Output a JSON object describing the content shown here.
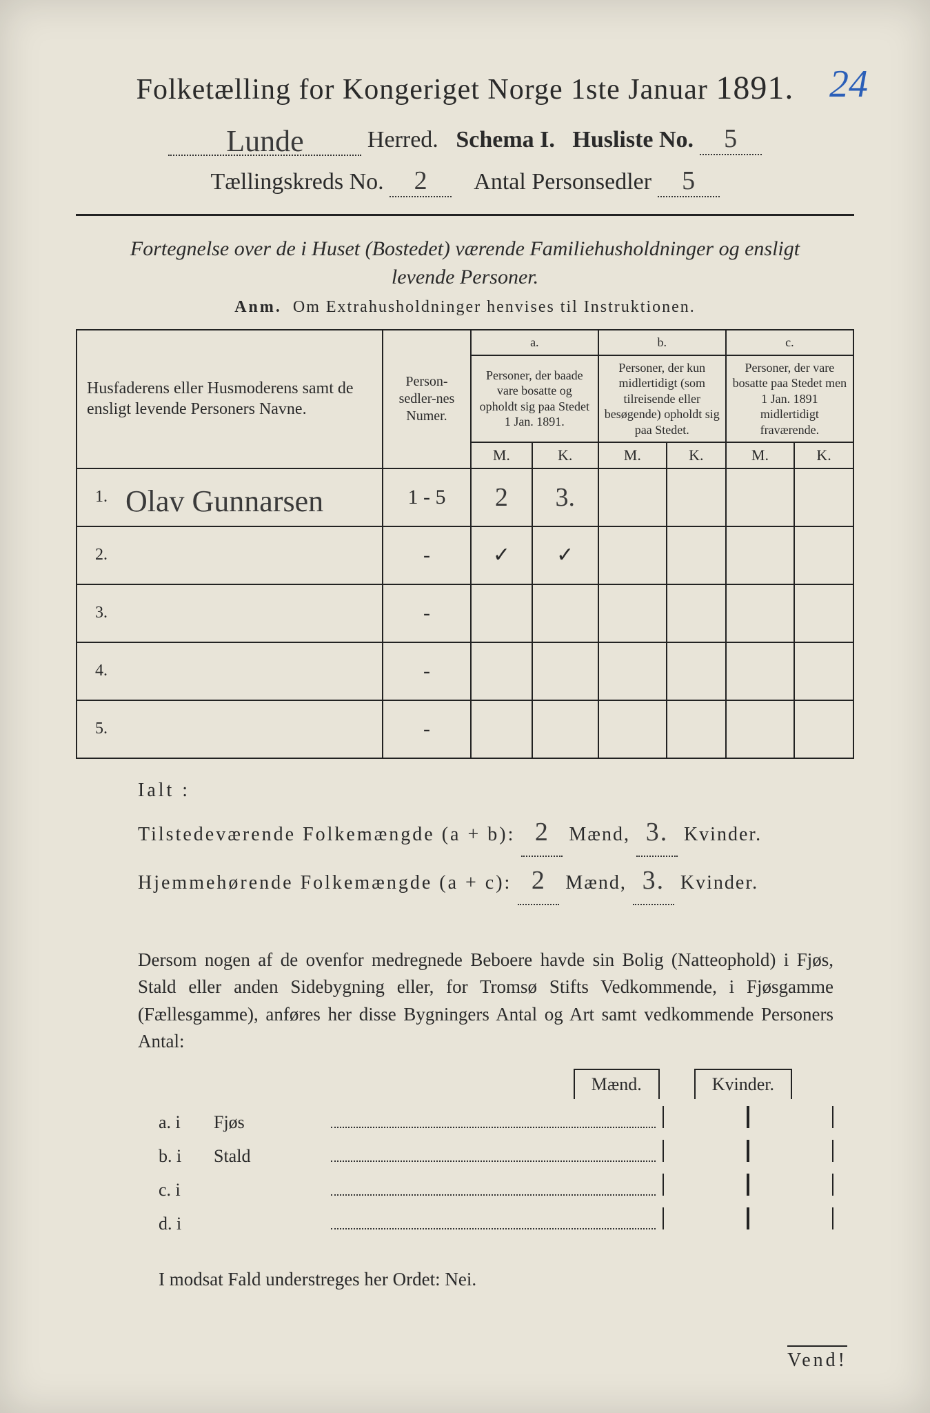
{
  "page_number_handwritten": "24",
  "title": {
    "main": "Folketælling for Kongeriget Norge 1ste Januar",
    "year": "1891."
  },
  "header": {
    "herred_value": "Lunde",
    "herred_label": "Herred.",
    "schema_label": "Schema I.",
    "husliste_label": "Husliste No.",
    "husliste_value": "5",
    "kreds_label": "Tællingskreds No.",
    "kreds_value": "2",
    "antal_label": "Antal Personsedler",
    "antal_value": "5"
  },
  "subtitle": "Fortegnelse over de i Huset (Bostedet) værende Familiehusholdninger og ensligt levende Personer.",
  "anm": {
    "label": "Anm.",
    "text": "Om Extrahusholdninger henvises til Instruktionen."
  },
  "table": {
    "col_name": "Husfaderens eller Husmoderens samt de ensligt levende Personers Navne.",
    "col_num": "Person-sedler-nes Numer.",
    "col_a_head": "a.",
    "col_a": "Personer, der baade vare bosatte og opholdt sig paa Stedet 1 Jan. 1891.",
    "col_b_head": "b.",
    "col_b": "Personer, der kun midlertidigt (som tilreisende eller besøgende) opholdt sig paa Stedet.",
    "col_c_head": "c.",
    "col_c": "Personer, der vare bosatte paa Stedet men 1 Jan. 1891 midlertidigt fraværende.",
    "mk_m": "M.",
    "mk_k": "K.",
    "rows": [
      {
        "n": "1.",
        "name": "Olav Gunnarsen",
        "num": "1 - 5",
        "a_m": "2",
        "a_k": "3.",
        "b_m": "",
        "b_k": "",
        "c_m": "",
        "c_k": ""
      },
      {
        "n": "2.",
        "name": "",
        "num": "-",
        "a_m": "✓",
        "a_k": "✓",
        "b_m": "",
        "b_k": "",
        "c_m": "",
        "c_k": ""
      },
      {
        "n": "3.",
        "name": "",
        "num": "-",
        "a_m": "",
        "a_k": "",
        "b_m": "",
        "b_k": "",
        "c_m": "",
        "c_k": ""
      },
      {
        "n": "4.",
        "name": "",
        "num": "-",
        "a_m": "",
        "a_k": "",
        "b_m": "",
        "b_k": "",
        "c_m": "",
        "c_k": ""
      },
      {
        "n": "5.",
        "name": "",
        "num": "-",
        "a_m": "",
        "a_k": "",
        "b_m": "",
        "b_k": "",
        "c_m": "",
        "c_k": ""
      }
    ]
  },
  "ialt_label": "Ialt :",
  "totals": {
    "line1_label": "Tilstedeværende Folkemængde (a + b):",
    "line1_m": "2",
    "line1_k": "3.",
    "line2_label": "Hjemmehørende Folkemængde (a + c):",
    "line2_m": "2",
    "line2_k": "3.",
    "maend": "Mænd,",
    "kvinder": "Kvinder."
  },
  "paragraph": "Dersom nogen af de ovenfor medregnede Beboere havde sin Bolig (Natteophold) i Fjøs, Stald eller anden Sidebygning eller, for Tromsø Stifts Vedkommende, i Fjøsgamme (Fællesgamme), anføres her disse Bygningers Antal og Art samt vedkommende Personers Antal:",
  "outbuildings": {
    "maend": "Mænd.",
    "kvinder": "Kvinder.",
    "lines": [
      {
        "lbl": "a.  i",
        "txt": "Fjøs"
      },
      {
        "lbl": "b.  i",
        "txt": "Stald"
      },
      {
        "lbl": "c.  i",
        "txt": ""
      },
      {
        "lbl": "d.  i",
        "txt": ""
      }
    ]
  },
  "nei": "I modsat Fald understreges her Ordet: Nei.",
  "vend": "Vend!"
}
